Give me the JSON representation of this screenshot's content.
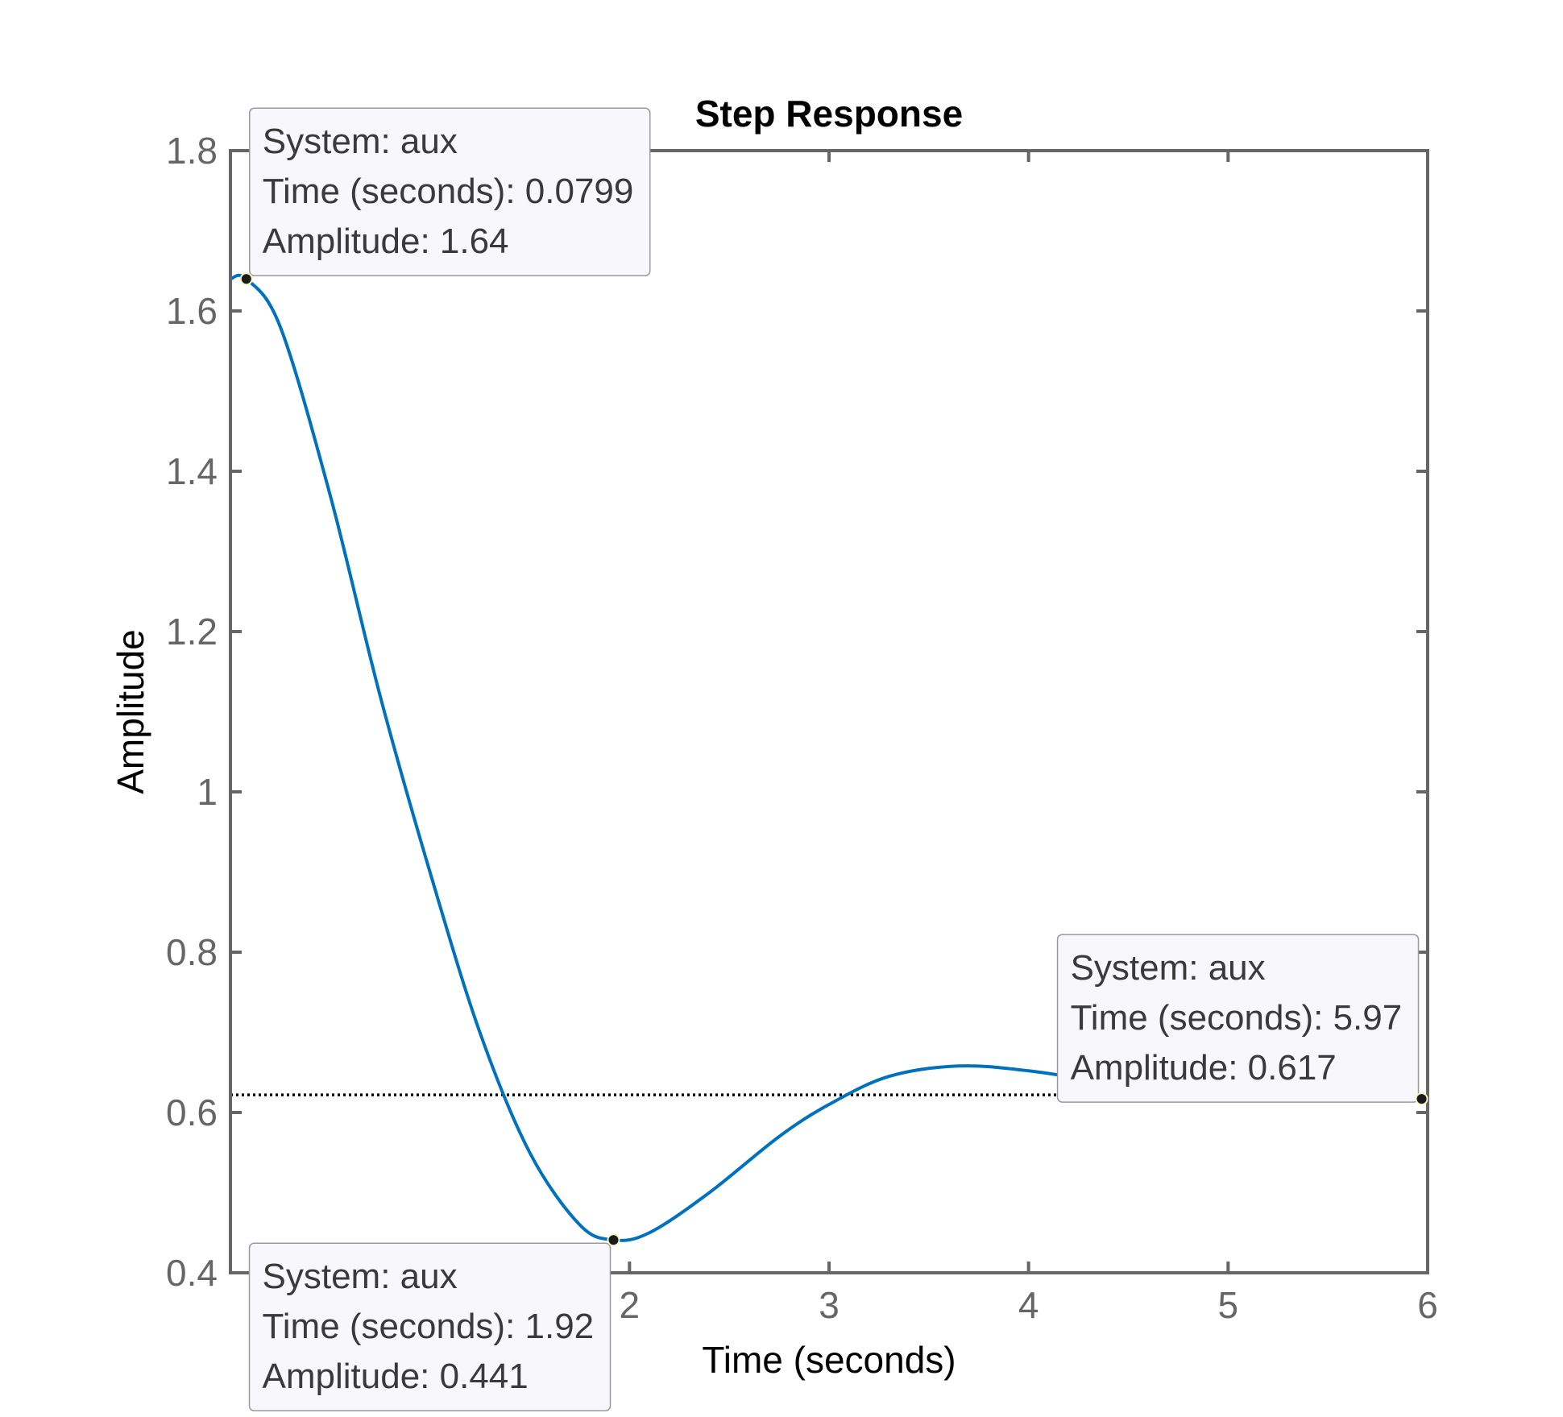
{
  "chart_data": {
    "type": "line",
    "title": "Step Response",
    "xlabel": "Time (seconds)",
    "ylabel": "Amplitude",
    "xlim": [
      0,
      6
    ],
    "ylim": [
      0.4,
      1.8
    ],
    "x_ticks": [
      {
        "value": 2,
        "label": "2"
      },
      {
        "value": 3,
        "label": "3"
      },
      {
        "value": 4,
        "label": "4"
      },
      {
        "value": 5,
        "label": "5"
      },
      {
        "value": 6,
        "label": "6"
      }
    ],
    "y_ticks": [
      {
        "value": 0.4,
        "label": "0.4"
      },
      {
        "value": 0.6,
        "label": "0.6"
      },
      {
        "value": 0.8,
        "label": "0.8"
      },
      {
        "value": 1.0,
        "label": "1"
      },
      {
        "value": 1.2,
        "label": "1.2"
      },
      {
        "value": 1.4,
        "label": "1.4"
      },
      {
        "value": 1.6,
        "label": "1.6"
      },
      {
        "value": 1.8,
        "label": "1.8"
      }
    ],
    "series": [
      {
        "name": "aux",
        "color": "#0072bd",
        "x": [
          0,
          0.0799,
          0.25,
          0.5,
          0.75,
          1.0,
          1.25,
          1.5,
          1.75,
          1.92,
          2.1,
          2.4,
          2.75,
          3.0,
          3.3,
          3.65,
          4.0,
          4.4,
          4.8,
          5.35,
          5.7,
          5.97
        ],
        "y": [
          1.64,
          1.64,
          1.58,
          1.37,
          1.12,
          0.9,
          0.7,
          0.55,
          0.46,
          0.441,
          0.45,
          0.5,
          0.57,
          0.61,
          0.645,
          0.658,
          0.652,
          0.637,
          0.623,
          0.615,
          0.616,
          0.617
        ]
      }
    ],
    "reference_line": {
      "y": 0.622,
      "style": "dotted",
      "color": "#000000"
    },
    "datatips": [
      {
        "x": 0.0799,
        "y": 1.64,
        "anchor": "right-above",
        "lines": [
          "System: aux",
          "Time (seconds): 0.0799",
          "Amplitude: 1.64"
        ]
      },
      {
        "x": 1.92,
        "y": 0.441,
        "anchor": "left-below",
        "lines": [
          "System: aux",
          "Time (seconds): 1.92",
          "Amplitude: 0.441"
        ]
      },
      {
        "x": 5.97,
        "y": 0.617,
        "anchor": "left-above",
        "lines": [
          "System: aux",
          "Time (seconds): 5.97",
          "Amplitude: 0.617"
        ]
      }
    ],
    "axes_color": "#666666",
    "grid": false
  }
}
